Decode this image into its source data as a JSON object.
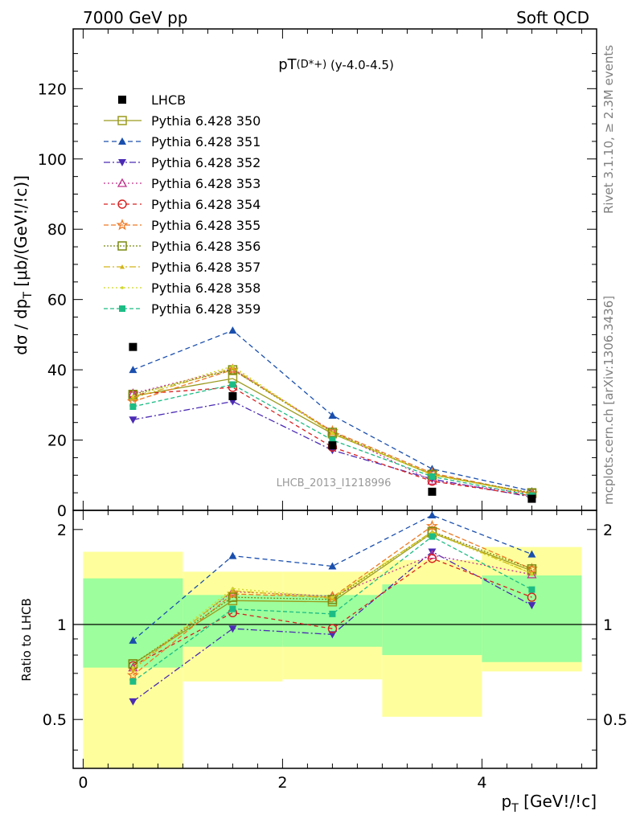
{
  "header": {
    "left": "7000 GeV pp",
    "right": "Soft QCD"
  },
  "side_labels": {
    "rivet": "Rivet 3.1.10, ≥ 2.3M events",
    "source": "mcplots.cern.ch [arXiv:1306.3436]"
  },
  "chart_data": [
    {
      "type": "line",
      "title": "pT(D*+) (y-4.0-4.5)",
      "ref_label": "LHCB_2013_I1218996",
      "ylabel": "dσ / dpT [μb/(GeV!/!c)]",
      "ylim": [
        0,
        137
      ],
      "yticks": [
        "0",
        "20",
        "40",
        "60",
        "80",
        "100",
        "120"
      ],
      "legend_position": "top-left",
      "x": [
        0.5,
        1.5,
        2.5,
        3.5,
        4.5
      ],
      "data": {
        "name": "LHCB",
        "color": "#000000",
        "values": [
          46.5,
          32.5,
          18.5,
          5.3,
          3.3
        ]
      },
      "series": [
        {
          "name": "Pythia 6.428 350",
          "color": "#9b9b1f",
          "marker": "square-open",
          "dash": "",
          "values": [
            32.5,
            37.5,
            21.8,
            10.2,
            4.8
          ]
        },
        {
          "name": "Pythia 6.428 351",
          "color": "#1a4fae",
          "marker": "triangle-up",
          "dash": "6,4",
          "values": [
            40.0,
            51.2,
            27.0,
            11.8,
            5.5
          ]
        },
        {
          "name": "Pythia 6.428 352",
          "color": "#4b2bb5",
          "marker": "triangle-down",
          "dash": "8,3,2,3",
          "values": [
            25.8,
            31.0,
            17.1,
            8.9,
            3.8
          ]
        },
        {
          "name": "Pythia 6.428 353",
          "color": "#c0338d",
          "marker": "triangle-open",
          "dash": "2,3",
          "values": [
            33.3,
            40.3,
            22.5,
            8.4,
            4.7
          ]
        },
        {
          "name": "Pythia 6.428 354",
          "color": "#d82020",
          "marker": "circle-open",
          "dash": "5,4",
          "values": [
            33.0,
            35.0,
            18.0,
            8.3,
            4.1
          ]
        },
        {
          "name": "Pythia 6.428 355",
          "color": "#ee7a25",
          "marker": "star-open",
          "dash": "6,3",
          "values": [
            31.0,
            40.0,
            22.5,
            10.6,
            4.8
          ]
        },
        {
          "name": "Pythia 6.428 356",
          "color": "#7a8a10",
          "marker": "square-open",
          "dash": "2,2",
          "values": [
            33.0,
            40.0,
            22.2,
            10.2,
            5.0
          ]
        },
        {
          "name": "Pythia 6.428 357",
          "color": "#d2b318",
          "marker": "tri-small",
          "dash": "8,3,2,3",
          "values": [
            32.0,
            40.5,
            22.0,
            10.2,
            4.7
          ]
        },
        {
          "name": "Pythia 6.428 358",
          "color": "#cfd62a",
          "marker": "dot",
          "dash": "2,3",
          "values": [
            32.5,
            41.0,
            22.0,
            10.0,
            4.7
          ]
        },
        {
          "name": "Pythia 6.428 359",
          "color": "#1dbc85",
          "marker": "square-filled",
          "dash": "5,3",
          "values": [
            29.5,
            35.8,
            20.0,
            9.6,
            4.2
          ]
        }
      ]
    },
    {
      "type": "line",
      "title": "",
      "ylabel": "Ratio to LHCB",
      "xlabel": "pT [GeV!/!c]",
      "xlim": [
        -0.1,
        5.15
      ],
      "ylim": [
        0.35,
        2.3
      ],
      "xticks": [
        "0",
        "2",
        "4"
      ],
      "yticks": [
        "0.5",
        "1",
        "2"
      ],
      "bands": {
        "x_edges": [
          0,
          1,
          2,
          3,
          4,
          5
        ],
        "stat_low": [
          0.73,
          0.85,
          0.85,
          0.8,
          0.76
        ],
        "stat_high": [
          1.4,
          1.24,
          1.24,
          1.34,
          1.43
        ],
        "total_low": [
          0.35,
          0.66,
          0.67,
          0.51,
          0.71
        ],
        "total_high": [
          1.7,
          1.47,
          1.47,
          1.6,
          1.76
        ],
        "stat_color": "#9cfe9c",
        "total_color": "#feff9c"
      },
      "x": [
        0.5,
        1.5,
        2.5,
        3.5,
        4.5
      ],
      "series": [
        {
          "name": "Pythia 6.428 350",
          "values": [
            0.75,
            1.19,
            1.18,
            1.95,
            1.48
          ]
        },
        {
          "name": "Pythia 6.428 351",
          "values": [
            0.89,
            1.65,
            1.53,
            2.22,
            1.67
          ]
        },
        {
          "name": "Pythia 6.428 352",
          "values": [
            0.57,
            0.97,
            0.93,
            1.7,
            1.15
          ]
        },
        {
          "name": "Pythia 6.428 353",
          "values": [
            0.73,
            1.27,
            1.23,
            1.66,
            1.44
          ]
        },
        {
          "name": "Pythia 6.428 354",
          "values": [
            0.74,
            1.09,
            0.97,
            1.62,
            1.22
          ]
        },
        {
          "name": "Pythia 6.428 355",
          "values": [
            0.69,
            1.25,
            1.22,
            2.05,
            1.5
          ]
        },
        {
          "name": "Pythia 6.428 356",
          "values": [
            0.75,
            1.22,
            1.2,
            1.97,
            1.5
          ]
        },
        {
          "name": "Pythia 6.428 357",
          "values": [
            0.72,
            1.28,
            1.21,
            1.97,
            1.45
          ]
        },
        {
          "name": "Pythia 6.428 358",
          "values": [
            0.73,
            1.3,
            1.22,
            1.95,
            1.45
          ]
        },
        {
          "name": "Pythia 6.428 359",
          "values": [
            0.66,
            1.12,
            1.08,
            1.9,
            1.29
          ]
        }
      ]
    }
  ]
}
